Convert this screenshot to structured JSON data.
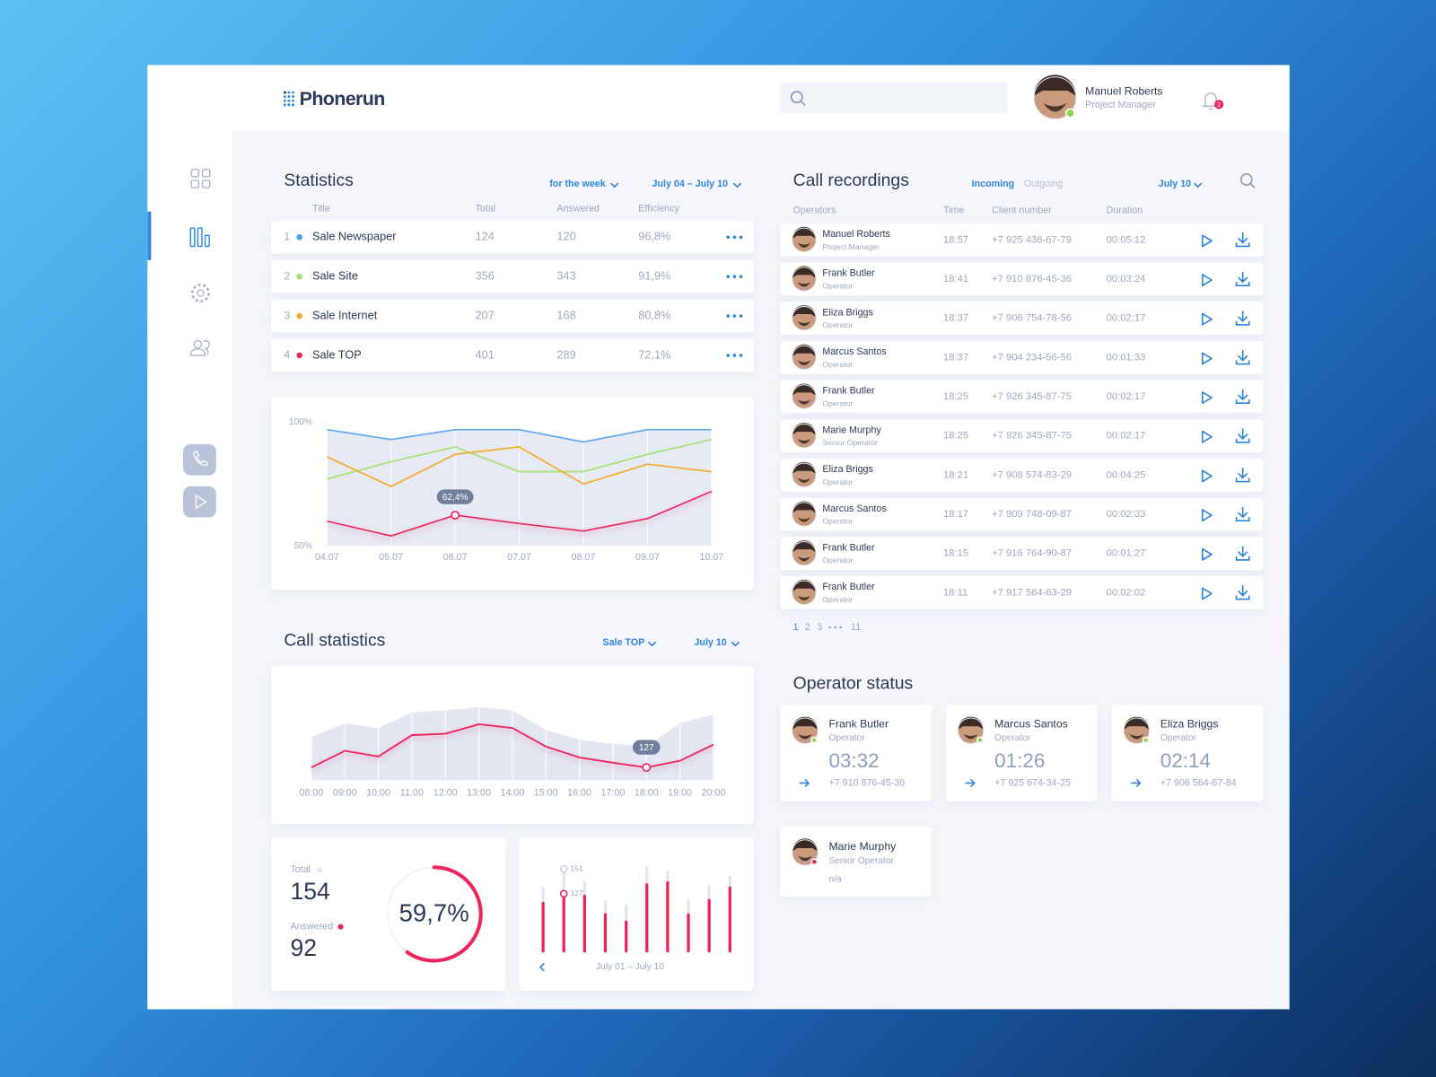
{
  "header": {
    "logo": "Phonerun",
    "user": {
      "name": "Manuel Roberts",
      "role": "Project Manager",
      "status_color": "#8bd64a"
    },
    "notifications": 2
  },
  "statistics": {
    "title": "Statistics",
    "period": "for the week",
    "range": "July 04 – July 10",
    "columns": [
      "Title",
      "Total",
      "Answered",
      "Efficiency"
    ],
    "rows": [
      {
        "number": 1,
        "title": "Sale Newspaper",
        "color": "#4a9ff5",
        "total": 124,
        "answered": 120,
        "efficiency": "96,8%"
      },
      {
        "number": 2,
        "title": "Sale Site",
        "color": "#a5e06b",
        "total": 356,
        "answered": 343,
        "efficiency": "91,9%"
      },
      {
        "number": 3,
        "title": "Sale Internet",
        "color": "#f7a825",
        "total": 207,
        "answered": 168,
        "efficiency": "80,8%"
      },
      {
        "number": 4,
        "title": "Sale TOP",
        "color": "#f0245a",
        "total": 401,
        "answered": 289,
        "efficiency": "72,1%"
      }
    ]
  },
  "statistics_chart": {
    "type": "line",
    "categories": [
      "04.07",
      "05.07",
      "06.07",
      "07.07",
      "08.07",
      "09.07",
      "10.07"
    ],
    "ylim": [
      50,
      100
    ],
    "yticks": [
      {
        "value": 50,
        "label": "50%"
      },
      {
        "value": 100,
        "label": "100%"
      }
    ],
    "series": [
      {
        "color": "#5aa8f0",
        "values": [
          97,
          93,
          97,
          97,
          92,
          97,
          97
        ]
      },
      {
        "color": "#a5e06b",
        "values": [
          77,
          84,
          90,
          80,
          80,
          87,
          93
        ]
      },
      {
        "color": "#f7a825",
        "values": [
          86,
          74,
          87,
          90,
          75,
          83,
          80
        ]
      },
      {
        "color": "#f0245a",
        "values": [
          60,
          54,
          62.4,
          59,
          56,
          61,
          72
        ],
        "value_labels": [
          null,
          null,
          "62,4%",
          null,
          null,
          null,
          null
        ]
      }
    ]
  },
  "call_statistics": {
    "title": "Call statistics",
    "filter": "Sale TOP",
    "date": "July 10",
    "chart": {
      "type": "line",
      "categories": [
        "08:00",
        "09:00",
        "10:00",
        "11:00",
        "12:00",
        "13:00",
        "14:00",
        "15:00",
        "16:00",
        "17:00",
        "18:00",
        "19:00",
        "20:00"
      ],
      "ylim": [
        100,
        260
      ],
      "series": [
        {
          "color": "#e2e7f1",
          "values": [
            191,
            220,
            210,
            243,
            247,
            254,
            247,
            206,
            185,
            177,
            171,
            220,
            239
          ]
        },
        {
          "color": "#f0245a",
          "values": [
            127,
            162,
            150,
            195,
            198,
            218,
            210,
            171,
            148,
            137,
            127,
            141,
            175
          ],
          "value_labels": [
            null,
            null,
            null,
            null,
            null,
            null,
            null,
            null,
            null,
            null,
            "127",
            null,
            null
          ]
        }
      ]
    }
  },
  "summary": {
    "total_label": "Total",
    "total": 154,
    "answered_label": "Answered",
    "answered": 92,
    "efficiency": 59.7,
    "efficiency_label": "59,7%",
    "color": "#f0245a"
  },
  "daily_chart": {
    "type": "bar",
    "range": "July 01 – July 10",
    "ylim": [
      70,
      165
    ],
    "series": [
      {
        "color": "#e1e6f0",
        "values": [
          134,
          151,
          139,
          121,
          117,
          154,
          150,
          122,
          135,
          144
        ],
        "value_labels": [
          null,
          "151",
          null,
          null,
          null,
          null,
          null,
          null,
          null,
          null
        ]
      },
      {
        "color": "#f0245a",
        "values": [
          119,
          127,
          126,
          108,
          101,
          137,
          139,
          108,
          122,
          134
        ],
        "value_labels": [
          null,
          "127",
          null,
          null,
          null,
          null,
          null,
          null,
          null,
          null
        ]
      }
    ]
  },
  "call_recordings": {
    "title": "Call recordings",
    "tabs": [
      "Incoming",
      "Outgoing"
    ],
    "date": "July 10",
    "columns": [
      "Operators",
      "Time",
      "Client number",
      "Duration"
    ],
    "rows": [
      {
        "name": "Manuel Roberts",
        "role": "Project Manager",
        "time": "18:57",
        "phone": "+7 925 436-67-79",
        "duration": "00:05:12"
      },
      {
        "name": "Frank Butler",
        "role": "Operator",
        "time": "18:41",
        "phone": "+7 910 876-45-36",
        "duration": "00:03:24"
      },
      {
        "name": "Eliza Briggs",
        "role": "Operator",
        "time": "18:37",
        "phone": "+7 906 754-78-56",
        "duration": "00:02:17"
      },
      {
        "name": "Marcus Santos",
        "role": "Operator",
        "time": "18:37",
        "phone": "+7 904 234-56-56",
        "duration": "00:01:33"
      },
      {
        "name": "Frank Butler",
        "role": "Operator",
        "time": "18:25",
        "phone": "+7 926 345-87-75",
        "duration": "00:02:17"
      },
      {
        "name": "Marie Murphy",
        "role": "Senior Operator",
        "time": "18:25",
        "phone": "+7 926 345-87-75",
        "duration": "00:02:17"
      },
      {
        "name": "Eliza Briggs",
        "role": "Operator",
        "time": "18:21",
        "phone": "+7 908 574-83-29",
        "duration": "00:04:25"
      },
      {
        "name": "Marcus Santos",
        "role": "Operator",
        "time": "18:17",
        "phone": "+7 909 748-09-87",
        "duration": "00:02:33"
      },
      {
        "name": "Frank Butler",
        "role": "Operator",
        "time": "18:15",
        "phone": "+7 916 764-90-87",
        "duration": "00:01:27"
      },
      {
        "name": "Frank Butler",
        "role": "Operator",
        "time": "18:11",
        "phone": "+7 917 564-63-29",
        "duration": "00:02:02"
      }
    ],
    "pages": [
      1,
      2,
      3,
      11
    ]
  },
  "operator_status": {
    "title": "Operator status",
    "operators": [
      {
        "name": "Frank Butler",
        "role": "Operator",
        "time": "03:32",
        "phone": "+7 910 876-45-36",
        "status_color": "#8bd64a"
      },
      {
        "name": "Marcus Santos",
        "role": "Operator",
        "time": "01:26",
        "phone": "+7 925 674-34-25",
        "status_color": "#8bd64a"
      },
      {
        "name": "Eliza Briggs",
        "role": "Operator",
        "time": "02:14",
        "phone": "+7 906 564-67-84",
        "status_color": "#8bd64a"
      },
      {
        "name": "Marie Murphy",
        "role": "Senior Operator",
        "time": "n/a",
        "status_color": "#f0245a"
      }
    ]
  }
}
